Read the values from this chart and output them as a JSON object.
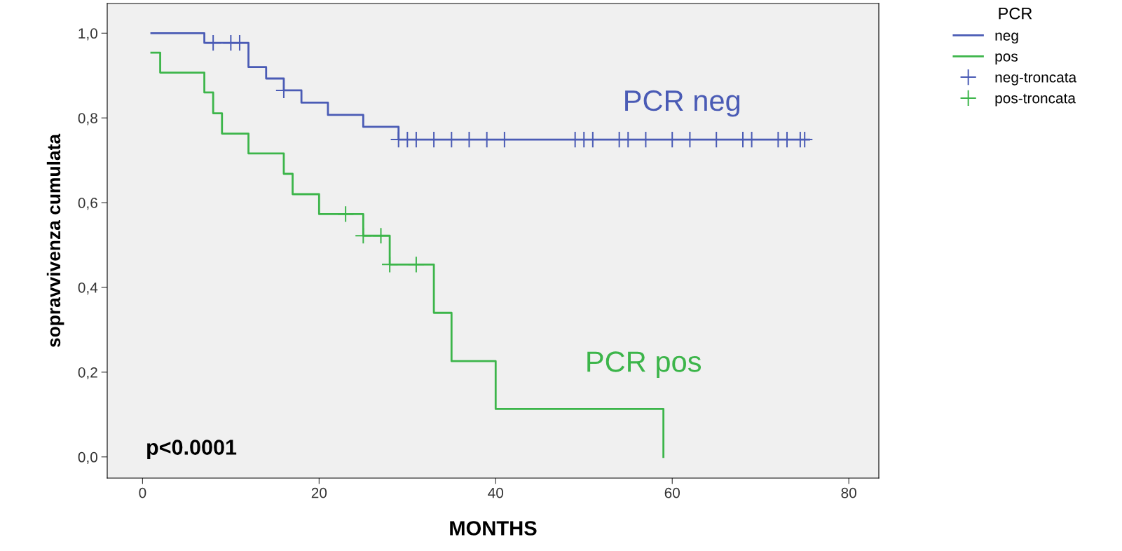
{
  "chart_data": {
    "type": "step",
    "xlabel": "MONTHS",
    "ylabel": "sopravvivenza cumulata",
    "legend_title": "PCR",
    "legend": "top right",
    "grid": false,
    "xlim": [
      -4,
      83.4
    ],
    "ylim": [
      -0.05,
      1.07
    ],
    "xticks": [
      0,
      20,
      40,
      60,
      80
    ],
    "yticks": [
      {
        "value": 0,
        "label": "0,0"
      },
      {
        "value": 0.2,
        "label": "0,2"
      },
      {
        "value": 0.4,
        "label": "0,4"
      },
      {
        "value": 0.6,
        "label": "0,6"
      },
      {
        "value": 0.8,
        "label": "0,8"
      },
      {
        "value": 1,
        "label": "1,0"
      }
    ],
    "series": [
      {
        "name": "neg",
        "color": "#4a5bb5",
        "marker": "none",
        "x": [
          1,
          7,
          12,
          14,
          16,
          18,
          21,
          25,
          29,
          75.5
        ],
        "values": [
          1.0,
          0.977,
          0.92,
          0.893,
          0.865,
          0.836,
          0.807,
          0.779,
          0.749,
          0.749
        ]
      },
      {
        "name": "pos",
        "color": "#3cb54a",
        "marker": "none",
        "x": [
          1,
          2,
          7,
          8,
          9,
          12,
          16,
          17,
          20,
          25,
          28,
          33,
          35,
          40,
          59,
          59
        ],
        "values": [
          0.954,
          0.907,
          0.86,
          0.811,
          0.763,
          0.716,
          0.668,
          0.62,
          0.573,
          0.522,
          0.454,
          0.34,
          0.226,
          0.113,
          0.113,
          0.0
        ]
      },
      {
        "name": "neg-troncata",
        "type": "scatter",
        "color": "#4a5bb5",
        "marker": "cross",
        "x": [
          8,
          10,
          11,
          16,
          29,
          30,
          31,
          33,
          35,
          37,
          39,
          41,
          49,
          50,
          51,
          54,
          55,
          57,
          60,
          62,
          65,
          68,
          69,
          72,
          73,
          74.5,
          75
        ],
        "values": [
          0.977,
          0.977,
          0.977,
          0.865,
          0.749,
          0.749,
          0.749,
          0.749,
          0.749,
          0.749,
          0.749,
          0.749,
          0.749,
          0.749,
          0.749,
          0.749,
          0.749,
          0.749,
          0.749,
          0.749,
          0.749,
          0.749,
          0.749,
          0.749,
          0.749,
          0.749,
          0.749
        ]
      },
      {
        "name": "pos-troncata",
        "type": "scatter",
        "color": "#3cb54a",
        "marker": "cross",
        "x": [
          23,
          25,
          27,
          28,
          31
        ],
        "values": [
          0.573,
          0.522,
          0.522,
          0.454,
          0.454
        ]
      }
    ],
    "annotations": [
      "PCR neg",
      "PCR pos",
      "p<0.0001"
    ]
  }
}
